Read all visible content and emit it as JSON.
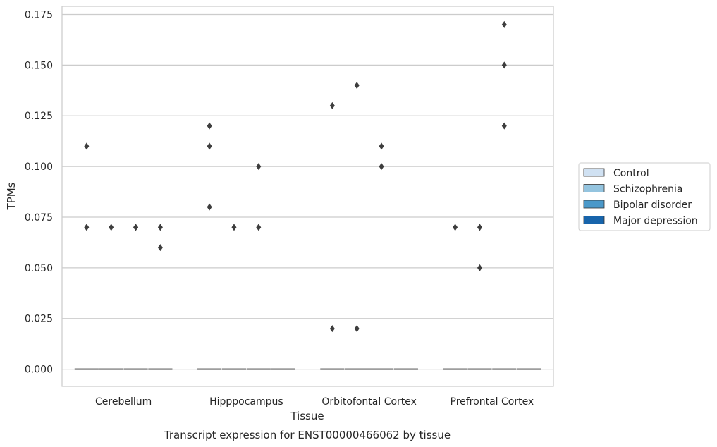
{
  "chart_data": {
    "type": "box",
    "title": "Transcript expression for ENST00000466062 by tissue",
    "xlabel": "Tissue",
    "ylabel": "TPMs",
    "ylim": [
      -0.0085,
      0.179
    ],
    "yticks": [
      "0.000",
      "0.025",
      "0.050",
      "0.075",
      "0.100",
      "0.125",
      "0.150",
      "0.175"
    ],
    "grid": true,
    "legend_position": "right",
    "categories": [
      "Cerebellum",
      "Hipppocampus",
      "Orbitofontal Cortex",
      "Prefrontal Cortex"
    ],
    "series": [
      {
        "name": "Control",
        "color": "#d0e1f2",
        "median": [
          0,
          0,
          0,
          0
        ],
        "outliers": [
          [
            0.11,
            0.07
          ],
          [
            0.12,
            0.11,
            0.08
          ],
          [
            0.13,
            0.02
          ],
          [
            0.07
          ]
        ]
      },
      {
        "name": "Schizophrenia",
        "color": "#94c4df",
        "median": [
          0,
          0,
          0,
          0
        ],
        "outliers": [
          [
            0.07
          ],
          [
            0.07
          ],
          [
            0.14,
            0.02
          ],
          [
            0.07,
            0.05
          ]
        ]
      },
      {
        "name": "Bipolar disorder",
        "color": "#4a98c9",
        "median": [
          0,
          0,
          0,
          0
        ],
        "outliers": [
          [
            0.07,
            0.07
          ],
          [
            0.1,
            0.07
          ],
          [
            0.11,
            0.1
          ],
          [
            0.17,
            0.15,
            0.12
          ]
        ]
      },
      {
        "name": "Major depression",
        "color": "#1764ab",
        "median": [
          0,
          0,
          0,
          0
        ],
        "outliers": [
          [
            0.07,
            0.06
          ],
          [],
          [],
          []
        ]
      }
    ]
  }
}
